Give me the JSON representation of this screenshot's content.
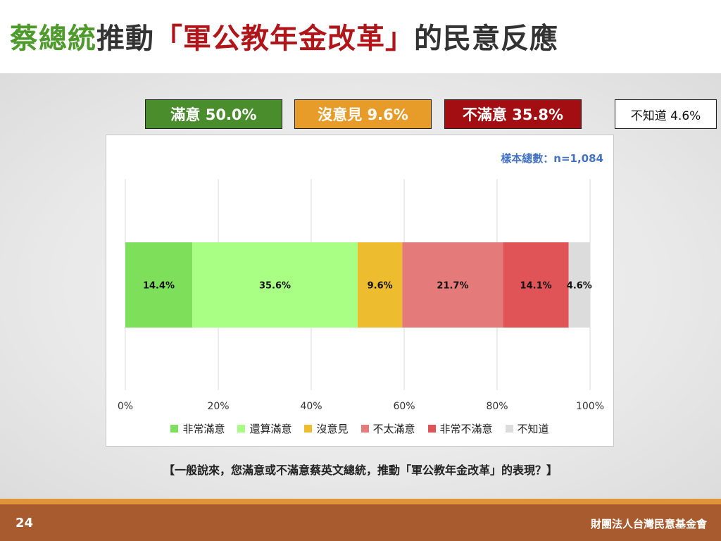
{
  "title": {
    "part1": "蔡總統",
    "part2": "推動",
    "part3": "「軍公教年金改革」",
    "part4": "的民意反應"
  },
  "summary": {
    "satisfied": "滿意 50.0%",
    "no_opinion": "沒意見 9.6%",
    "dissatisfied": "不滿意 35.8%",
    "dont_know": "不知道 4.6%"
  },
  "sample_size": "樣本總數：n=1,084",
  "question": "【一般說來，您滿意或不滿意蔡英文總統，推動「軍公教年金改革」的表現？】",
  "footer": {
    "page_number": "24",
    "organization": "財團法人台灣民意基金會"
  },
  "colors": {
    "very_satisfied": "#7ee05a",
    "somewhat_satisfied": "#a9ff84",
    "no_opinion": "#eebd2f",
    "not_very_satisfied": "#e47a7a",
    "very_dissatisfied": "#e05356",
    "dont_know": "#dcdcdc"
  },
  "chart_data": {
    "type": "bar",
    "orientation": "horizontal",
    "stacked": true,
    "categories": [
      ""
    ],
    "series": [
      {
        "name": "非常滿意",
        "values": [
          14.4
        ],
        "color": "#7ee05a"
      },
      {
        "name": "還算滿意",
        "values": [
          35.6
        ],
        "color": "#a9ff84"
      },
      {
        "name": "沒意見",
        "values": [
          9.6
        ],
        "color": "#eebd2f"
      },
      {
        "name": "不太滿意",
        "values": [
          21.7
        ],
        "color": "#e47a7a"
      },
      {
        "name": "非常不滿意",
        "values": [
          14.1
        ],
        "color": "#e05356"
      },
      {
        "name": "不知道",
        "values": [
          4.6
        ],
        "color": "#dcdcdc"
      }
    ],
    "data_labels": [
      "14.4%",
      "35.6%",
      "9.6%",
      "21.7%",
      "14.1%",
      "4.6%"
    ],
    "x_ticks": [
      "0%",
      "20%",
      "40%",
      "60%",
      "80%",
      "100%"
    ],
    "xlim": [
      0,
      100
    ],
    "grid": true,
    "legend": "bottom"
  }
}
